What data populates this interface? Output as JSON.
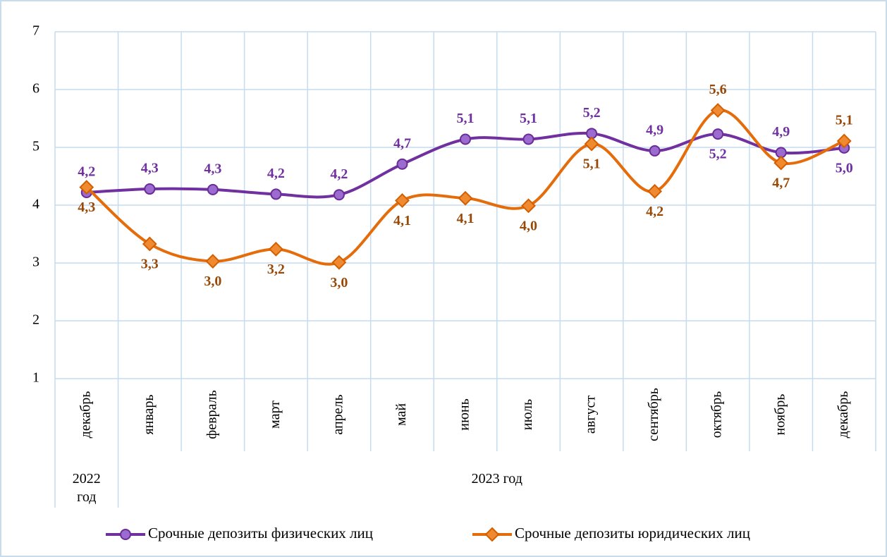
{
  "chart_data": {
    "type": "line",
    "categories": [
      "декабрь",
      "январь",
      "февраль",
      "март",
      "апрель",
      "май",
      "июнь",
      "июль",
      "август",
      "сентябрь",
      "октябрь",
      "ноябрь",
      "декабрь"
    ],
    "groups": [
      "2022 год",
      "2023 год"
    ],
    "series": [
      {
        "name": "Срочные депозиты физических лиц",
        "color": "#7030a0",
        "values": [
          4.22,
          4.28,
          4.27,
          4.19,
          4.18,
          4.71,
          5.14,
          5.14,
          5.24,
          4.94,
          5.23,
          4.91,
          4.99
        ],
        "value_labels": [
          "4,2",
          "4,3",
          "4,3",
          "4,2",
          "4,2",
          "4,7",
          "5,1",
          "5,1",
          "5,2",
          "4,9",
          "5,2",
          "4,9",
          "5,0"
        ]
      },
      {
        "name": "Срочные депозиты юридических лиц",
        "color": "#e46c0a",
        "values": [
          4.31,
          3.33,
          3.03,
          3.24,
          3.01,
          4.08,
          4.12,
          3.99,
          5.06,
          4.24,
          5.64,
          4.73,
          5.11
        ],
        "value_labels": [
          "4,3",
          "3,3",
          "3,0",
          "3,2",
          "3,0",
          "4,1",
          "4,1",
          "4,0",
          "5,1",
          "4,2",
          "5,6",
          "4,7",
          "5,1"
        ]
      }
    ],
    "ylim": [
      1,
      7
    ],
    "yticks": [
      1,
      2,
      3,
      4,
      5,
      6,
      7
    ],
    "grid": true,
    "smooth": true,
    "legend": "bottom"
  }
}
